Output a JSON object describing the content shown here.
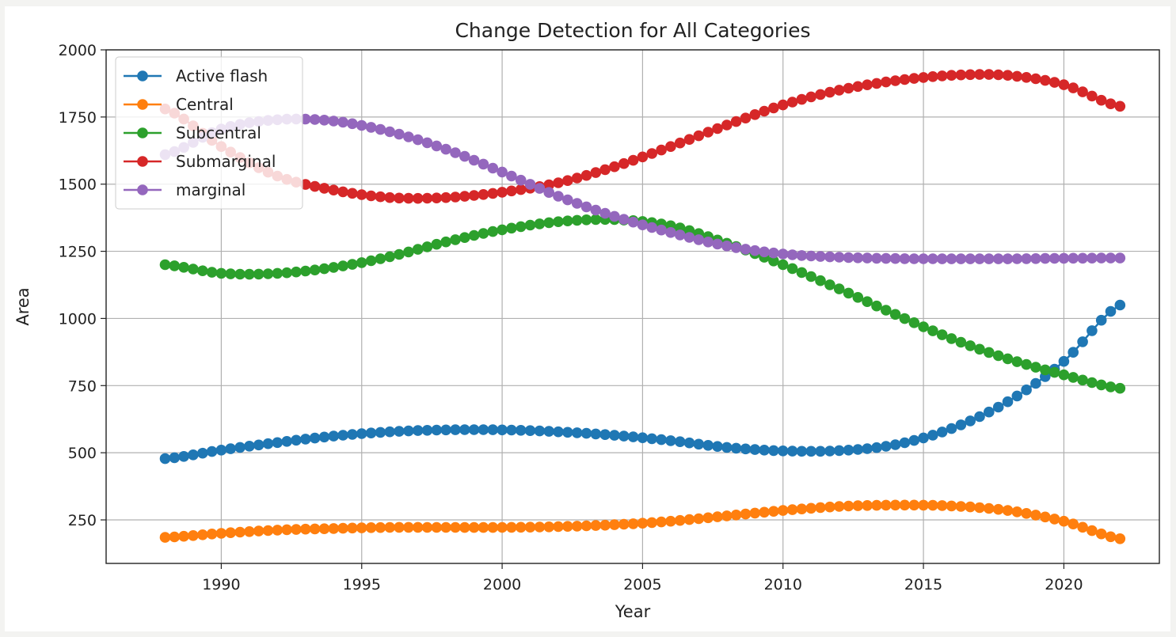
{
  "chart_data": {
    "type": "line",
    "title": "Change Detection for All Categories",
    "xlabel": "Year",
    "ylabel": "Area",
    "xlim": [
      1985.9,
      2023.4
    ],
    "ylim": [
      88,
      2000
    ],
    "xticks": [
      1990,
      1995,
      2000,
      2005,
      2010,
      2015,
      2020
    ],
    "yticks": [
      250,
      500,
      750,
      1000,
      1250,
      1500,
      1750,
      2000
    ],
    "grid": true,
    "legend_position": "top-left",
    "marker": "circle",
    "sample_years": [
      1988,
      1990,
      1992,
      1994,
      1996,
      1998,
      2000,
      2002,
      2004,
      2006,
      2008,
      2010,
      2012,
      2014,
      2016,
      2018,
      2020,
      2022
    ],
    "samples_per_year": 3,
    "series": [
      {
        "name": "Active flash",
        "color": "#1f77b4",
        "values": [
          478,
          510,
          538,
          562,
          578,
          585,
          585,
          578,
          565,
          545,
          520,
          507,
          508,
          530,
          590,
          690,
          840,
          1050
        ]
      },
      {
        "name": "Central",
        "color": "#ff7f0e",
        "values": [
          185,
          200,
          212,
          218,
          222,
          222,
          222,
          225,
          232,
          245,
          265,
          285,
          300,
          305,
          302,
          285,
          245,
          180
        ]
      },
      {
        "name": "Subcentral",
        "color": "#2ca02c",
        "values": [
          1200,
          1168,
          1168,
          1190,
          1230,
          1285,
          1330,
          1360,
          1368,
          1345,
          1280,
          1200,
          1110,
          1015,
          925,
          850,
          790,
          740
        ]
      },
      {
        "name": "Submarginal",
        "color": "#d62728",
        "values": [
          1780,
          1640,
          1530,
          1478,
          1450,
          1450,
          1470,
          1505,
          1565,
          1640,
          1720,
          1795,
          1850,
          1885,
          1905,
          1905,
          1870,
          1790
        ]
      },
      {
        "name": "marginal",
        "color": "#9467bd",
        "values": [
          1610,
          1705,
          1740,
          1735,
          1695,
          1630,
          1545,
          1455,
          1380,
          1320,
          1270,
          1240,
          1228,
          1223,
          1222,
          1222,
          1224,
          1225
        ]
      }
    ]
  }
}
